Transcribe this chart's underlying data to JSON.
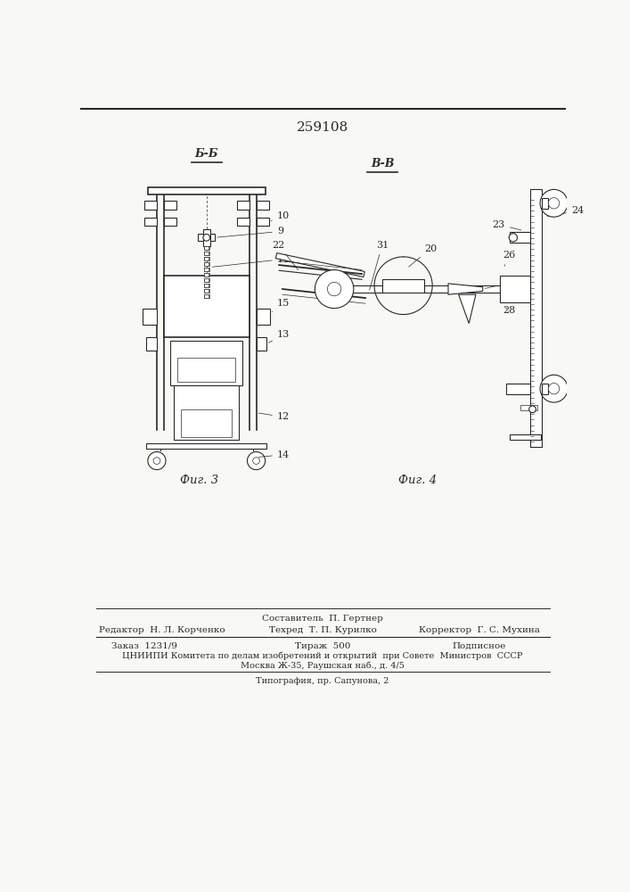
{
  "title_number": "259108",
  "bg_color": "#f8f8f4",
  "line_color": "#2a2a2a",
  "fig3_label": "Фиг. 3",
  "fig4_label": "Фиг. 4",
  "view_b_label": "Б-Б",
  "view_v_label": "В-В",
  "footer_sestavitel": "Составитель  П. Гертнер",
  "footer_redaktor": "Редактор  Н. Л. Корченко",
  "footer_tehred": "Техред  Т. П. Курилко",
  "footer_korrektor": "Корректор  Г. С. Мухина",
  "footer_zakaz": "Заказ  1231/9",
  "footer_tirazh": "Тираж  500",
  "footer_podpisnoe": "Подписное",
  "footer_tsnipi": "ЦНИИПИ Комитета по делам изобретений и открытий  при Совете  Министров  СССР",
  "footer_moskva": "Москва Ж-35, Раушская наб., д. 4/5",
  "footer_tipografia": "Типография, пр. Сапунова, 2"
}
